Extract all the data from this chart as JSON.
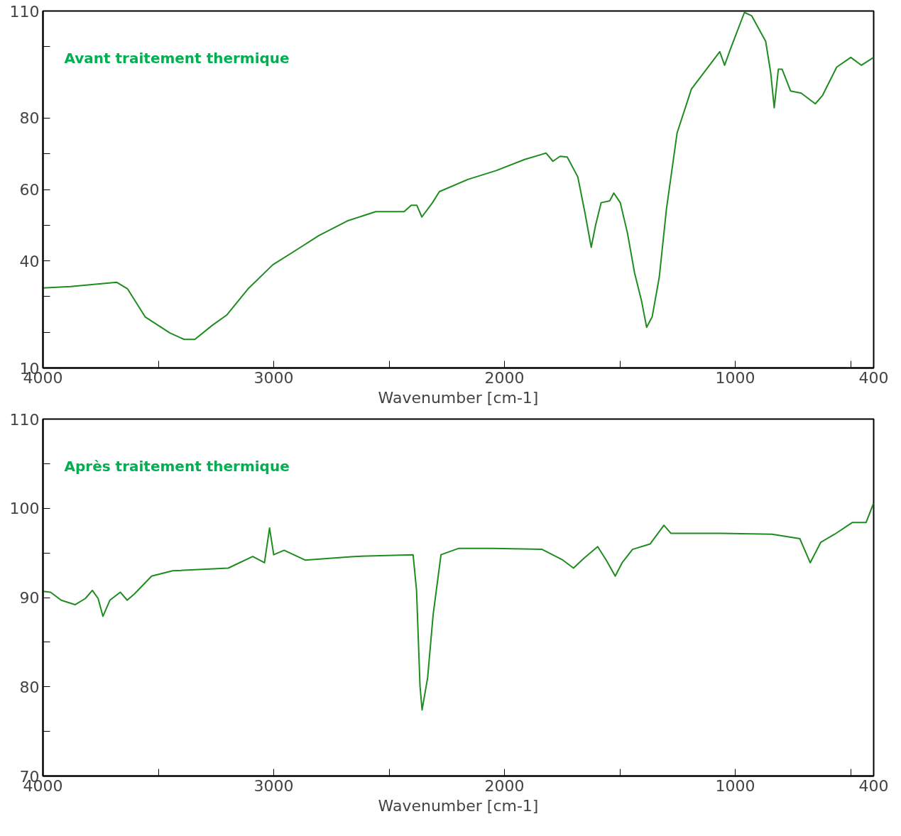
{
  "chart_data": [
    {
      "type": "line",
      "annotations": [
        "Avant  traitement thermique"
      ],
      "xlabel": "Wavenumber [cm-1]",
      "xlim": [
        4000,
        400
      ],
      "ylim": [
        10,
        110
      ],
      "xticks": [
        4000,
        {
          "value": 3500,
          "label": null
        },
        3000,
        {
          "value": 2500,
          "label": null
        },
        2000,
        {
          "value": 1500,
          "label": null
        },
        1000,
        {
          "value": 500,
          "label": null
        },
        400
      ],
      "yticks": [
        10,
        {
          "value": 20,
          "label": null
        },
        {
          "value": 30,
          "label": null
        },
        40,
        {
          "value": 50,
          "label": null
        },
        60,
        {
          "value": 70,
          "label": null
        },
        80,
        {
          "value": 100,
          "label": null
        },
        110
      ],
      "x": [
        4000,
        3880,
        3680,
        3634,
        3557,
        3450,
        3388,
        3342,
        3265,
        3204,
        3112,
        3004,
        2896,
        2804,
        2681,
        2558,
        2435,
        2404,
        2380,
        2358,
        2312,
        2282,
        2159,
        2036,
        1913,
        1820,
        1790,
        1759,
        1728,
        1682,
        1651,
        1624,
        1605,
        1581,
        1544,
        1526,
        1498,
        1467,
        1436,
        1406,
        1384,
        1360,
        1329,
        1298,
        1252,
        1190,
        1067,
        1046,
        1021,
        960,
        929,
        868,
        846,
        831,
        813,
        797,
        760,
        714,
        653,
        622,
        560,
        499,
        453,
        400
      ],
      "series": [
        {
          "color": "#1f8c1f",
          "values": [
            32.4,
            32.8,
            34,
            32.2,
            24.3,
            19.8,
            18,
            18,
            22,
            24.8,
            32.1,
            38.9,
            43.3,
            47.1,
            51.2,
            53.8,
            53.8,
            55.6,
            55.6,
            52.3,
            56.3,
            59.4,
            62.8,
            65.3,
            68.4,
            70.2,
            67.9,
            69.3,
            69.1,
            63.5,
            53.4,
            43.8,
            50,
            56.3,
            56.8,
            59,
            56.3,
            47.8,
            36.6,
            28.8,
            21.4,
            24.3,
            35.5,
            54.5,
            75.8,
            88.1,
            98.6,
            94.8,
            99.3,
            109.6,
            108.7,
            101.5,
            92.6,
            82.9,
            93.7,
            93.7,
            87.6,
            87,
            84,
            86.3,
            94.3,
            97,
            94.8,
            97
          ]
        }
      ]
    },
    {
      "type": "line",
      "annotations": [
        "Après traitement thermique"
      ],
      "xlabel": "Wavenumber [cm-1]",
      "xlim": [
        4000,
        400
      ],
      "ylim": [
        70,
        110
      ],
      "xticks": [
        4000,
        {
          "value": 3500,
          "label": null
        },
        3000,
        {
          "value": 2500,
          "label": null
        },
        2000,
        {
          "value": 1500,
          "label": null
        },
        1000,
        {
          "value": 500,
          "label": null
        },
        400
      ],
      "yticks": [
        70,
        {
          "value": 75,
          "label": null
        },
        80,
        {
          "value": 85,
          "label": null
        },
        90,
        {
          "value": 95,
          "label": null
        },
        100,
        {
          "value": 105,
          "label": null
        },
        110
      ],
      "x": [
        4000,
        3967,
        3921,
        3861,
        3816,
        3786,
        3761,
        3740,
        3710,
        3665,
        3635,
        3604,
        3529,
        3438,
        3197,
        3091,
        3040,
        3018,
        3000,
        2955,
        2864,
        2653,
        2396,
        2381,
        2366,
        2357,
        2333,
        2309,
        2275,
        2200,
        2049,
        1837,
        1747,
        1701,
        1656,
        1596,
        1559,
        1520,
        1490,
        1445,
        1369,
        1309,
        1279,
        1082,
        841,
        720,
        675,
        629,
        569,
        493,
        433,
        400
      ],
      "series": [
        {
          "color": "#1f8c1f",
          "values": [
            90.7,
            90.6,
            89.7,
            89.2,
            89.9,
            90.8,
            89.9,
            87.9,
            89.7,
            90.6,
            89.7,
            90.4,
            92.4,
            93,
            93.3,
            94.6,
            93.9,
            97.8,
            94.8,
            95.3,
            94.2,
            94.6,
            94.8,
            90.8,
            80.1,
            77.4,
            81,
            88.1,
            94.8,
            95.5,
            95.5,
            95.4,
            94.2,
            93.3,
            94.4,
            95.7,
            94.2,
            92.4,
            93.9,
            95.4,
            96,
            98.1,
            97.2,
            97.2,
            97.1,
            96.6,
            93.9,
            96.2,
            97.1,
            98.4,
            98.4,
            100.6
          ]
        }
      ]
    }
  ]
}
